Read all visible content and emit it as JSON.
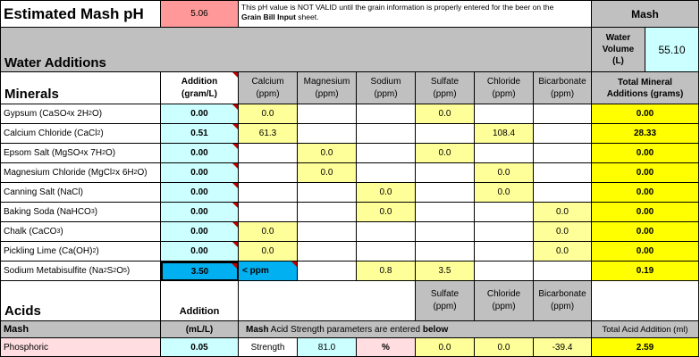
{
  "header": {
    "title": "Estimated Mash pH",
    "ph_value": "5.06",
    "note_line1": "This pH value is NOT VALID until the grain information is properly entered for the beer on the",
    "note_bold": "Grain Bill Input",
    "note_tail": " sheet.",
    "mash_label": "Mash",
    "water_volume_label_1": "Water",
    "water_volume_label_2": "Volume",
    "water_volume_label_3": "(L)",
    "water_volume_value": "55.10",
    "water_additions": "Water Additions"
  },
  "minerals": {
    "section_title": "Minerals",
    "columns": {
      "addition": [
        "Addition",
        "(gram/L)"
      ],
      "calcium": [
        "Calcium",
        "(ppm)"
      ],
      "magnesium": [
        "Magnesium",
        "(ppm)"
      ],
      "sodium": [
        "Sodium",
        "(ppm)"
      ],
      "sulfate": [
        "Sulfate",
        "(ppm)"
      ],
      "chloride": [
        "Chloride",
        "(ppm)"
      ],
      "bicarbonate": [
        "Bicarbonate",
        "(ppm)"
      ],
      "total": [
        "Total Mineral",
        "Additions (grams)"
      ]
    },
    "rows": [
      {
        "name": "Gypsum (CaSO",
        "sub": "4",
        "name2": " x 2H",
        "sub2": "2",
        "name3": "O)",
        "addition": "0.00",
        "calcium": "0.0",
        "magnesium": "",
        "sodium": "",
        "sulfate": "0.0",
        "chloride": "",
        "bicarbonate": "",
        "total": "0.00"
      },
      {
        "name": "Calcium Chloride (CaCl",
        "sub": "2",
        "name2": ")",
        "sub2": "",
        "name3": "",
        "addition": "0.51",
        "calcium": "61.3",
        "magnesium": "",
        "sodium": "",
        "sulfate": "",
        "chloride": "108.4",
        "bicarbonate": "",
        "total": "28.33"
      },
      {
        "name": "Epsom Salt (MgSO",
        "sub": "4",
        "name2": " x 7H",
        "sub2": "2",
        "name3": "O)",
        "addition": "0.00",
        "calcium": "",
        "magnesium": "0.0",
        "sodium": "",
        "sulfate": "0.0",
        "chloride": "",
        "bicarbonate": "",
        "total": "0.00"
      },
      {
        "name": "Magnesium Chloride (MgCl",
        "sub": "2",
        "name2": " x 6H",
        "sub2": "2",
        "name3": "O)",
        "addition": "0.00",
        "calcium": "",
        "magnesium": "0.0",
        "sodium": "",
        "sulfate": "",
        "chloride": "0.0",
        "bicarbonate": "",
        "total": "0.00"
      },
      {
        "name": "Canning Salt (NaCl)",
        "sub": "",
        "name2": "",
        "sub2": "",
        "name3": "",
        "addition": "0.00",
        "calcium": "",
        "magnesium": "",
        "sodium": "0.0",
        "sulfate": "",
        "chloride": "0.0",
        "bicarbonate": "",
        "total": "0.00"
      },
      {
        "name": "Baking Soda (NaHCO",
        "sub": "3",
        "name2": ")",
        "sub2": "",
        "name3": "",
        "addition": "0.00",
        "calcium": "",
        "magnesium": "",
        "sodium": "0.0",
        "sulfate": "",
        "chloride": "",
        "bicarbonate": "0.0",
        "total": "0.00"
      },
      {
        "name": "Chalk (CaCO",
        "sub": "3",
        "name2": ")",
        "sub2": "",
        "name3": "",
        "addition": "0.00",
        "calcium": "0.0",
        "magnesium": "",
        "sodium": "",
        "sulfate": "",
        "chloride": "",
        "bicarbonate": "0.0",
        "total": "0.00"
      },
      {
        "name": "Pickling Lime (Ca(OH)",
        "sub": "2",
        "name2": ")",
        "sub2": "",
        "name3": "",
        "addition": "0.00",
        "calcium": "0.0",
        "magnesium": "",
        "sodium": "",
        "sulfate": "",
        "chloride": "",
        "bicarbonate": "0.0",
        "total": "0.00"
      },
      {
        "name": "Sodium Metabisulfite (Na",
        "sub": "2",
        "name2": "S",
        "sub2": "2",
        "name3": "O",
        "sub3": "5",
        "name4": ")",
        "addition": "3.50",
        "calcium": "< ppm",
        "magnesium": "",
        "sodium": "0.8",
        "sulfate": "3.5",
        "chloride": "",
        "bicarbonate": "",
        "total": "0.19"
      }
    ]
  },
  "acids": {
    "section_title": "Acids",
    "addition_label": "Addition",
    "unit_label": "(mL/L)",
    "sulfate": [
      "Sulfate",
      "(ppm)"
    ],
    "chloride": [
      "Chloride",
      "(ppm)"
    ],
    "bicarbonate": [
      "Bicarbonate",
      "(ppm)"
    ],
    "mash_label": "Mash",
    "strength_note_bold1": "Mash",
    "strength_note_mid": " Acid Strength parameters are entered ",
    "strength_note_bold2": "below",
    "total_label": "Total Acid Addition (ml)",
    "row": {
      "name": "Phosphoric",
      "addition": "0.05",
      "strength_label": "Strength",
      "strength_value": "81.0",
      "unit": "%",
      "sulfate": "0.0",
      "chloride": "0.0",
      "bicarbonate": "-39.4",
      "total": "2.59"
    }
  }
}
